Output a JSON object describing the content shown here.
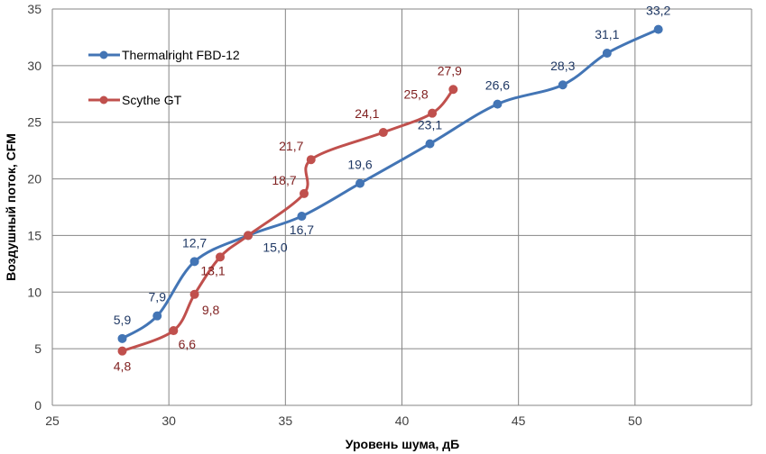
{
  "chart_data": {
    "type": "line",
    "title": "",
    "xlabel": "Уровень шума, дБ",
    "ylabel": "Воздушный поток, CFM",
    "xlim": [
      25,
      55
    ],
    "ylim": [
      0,
      35
    ],
    "x_ticks": [
      25,
      30,
      35,
      40,
      45,
      50
    ],
    "y_ticks": [
      0,
      5,
      10,
      15,
      20,
      25,
      30,
      35
    ],
    "grid": true,
    "legend_position": "top-left",
    "smooth": true,
    "series": [
      {
        "name": "Thermalright FBD-12",
        "color": "#4375b5",
        "points": [
          {
            "x": 28.0,
            "y": 5.9,
            "label": "5,9"
          },
          {
            "x": 29.5,
            "y": 7.9,
            "label": "7,9"
          },
          {
            "x": 31.1,
            "y": 12.7,
            "label": "12,7"
          },
          {
            "x": 33.4,
            "y": 15.0,
            "label": "15,0"
          },
          {
            "x": 35.7,
            "y": 16.7,
            "label": "16,7"
          },
          {
            "x": 38.2,
            "y": 19.6,
            "label": "19,6"
          },
          {
            "x": 41.2,
            "y": 23.1,
            "label": "23,1"
          },
          {
            "x": 44.1,
            "y": 26.6,
            "label": "26,6"
          },
          {
            "x": 46.9,
            "y": 28.3,
            "label": "28,3"
          },
          {
            "x": 48.8,
            "y": 31.1,
            "label": "31,1"
          },
          {
            "x": 51.0,
            "y": 33.2,
            "label": "33,2"
          }
        ]
      },
      {
        "name": "Scythe GT",
        "color": "#c0504d",
        "points": [
          {
            "x": 28.0,
            "y": 4.8,
            "label": "4,8"
          },
          {
            "x": 30.2,
            "y": 6.6,
            "label": "6,6"
          },
          {
            "x": 31.1,
            "y": 9.8,
            "label": "9,8"
          },
          {
            "x": 32.2,
            "y": 13.1,
            "label": "13,1"
          },
          {
            "x": 33.4,
            "y": 15.0,
            "label": ""
          },
          {
            "x": 35.8,
            "y": 18.7,
            "label": "18,7"
          },
          {
            "x": 36.1,
            "y": 21.7,
            "label": "21,7"
          },
          {
            "x": 39.2,
            "y": 24.1,
            "label": "24,1"
          },
          {
            "x": 41.3,
            "y": 25.8,
            "label": "25,8"
          },
          {
            "x": 42.2,
            "y": 27.9,
            "label": "27,9"
          }
        ]
      }
    ]
  }
}
